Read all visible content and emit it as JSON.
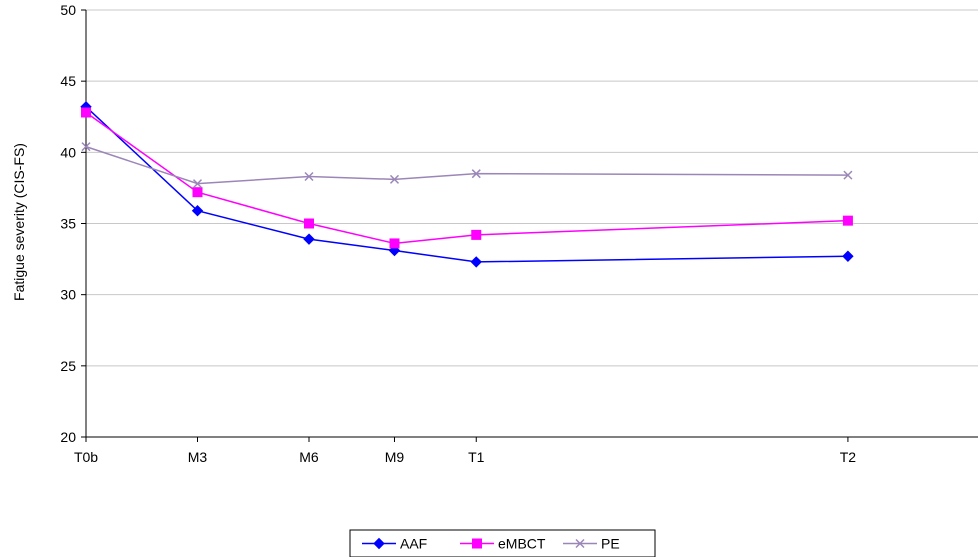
{
  "chart_data": {
    "type": "line",
    "title": "",
    "xlabel": "",
    "ylabel": "Fatigue severity (CIS-FS)",
    "categories": [
      "T0b",
      "M3",
      "M6",
      "M9",
      "T1",
      "T2"
    ],
    "x_months": [
      0,
      3,
      6,
      8.3,
      10.5,
      20.5
    ],
    "ylim": [
      20,
      50
    ],
    "yticks": [
      20,
      25,
      30,
      35,
      40,
      45,
      50
    ],
    "grid": "horizontal",
    "legend_position": "bottom-center",
    "series": [
      {
        "name": "AAF",
        "color": "#0000ff",
        "marker": "diamond",
        "values": [
          43.2,
          35.9,
          33.9,
          33.1,
          32.3,
          32.7
        ]
      },
      {
        "name": "eMBCT",
        "color": "#ff00ff",
        "marker": "square",
        "values": [
          42.8,
          37.2,
          35.0,
          33.6,
          34.2,
          35.2
        ]
      },
      {
        "name": "PE",
        "color": "#9b86b8",
        "marker": "x",
        "values": [
          40.4,
          37.8,
          38.3,
          38.1,
          38.5,
          38.4
        ]
      }
    ]
  }
}
